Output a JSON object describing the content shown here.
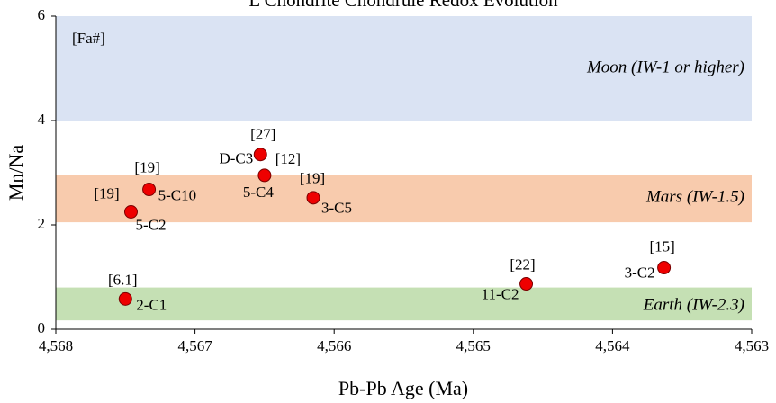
{
  "chart_data": {
    "type": "scatter",
    "title": "L Chondrite Chondrule Redox Evolution",
    "x_label": "Pb-Pb Age (Ma)",
    "y_label": "Mn/Na",
    "legend_note": "[Fa#]",
    "xlim": [
      4568,
      4563
    ],
    "xticks": [
      {
        "value": 4568,
        "label": "4,568"
      },
      {
        "value": 4567,
        "label": "4,567"
      },
      {
        "value": 4566,
        "label": "4,566"
      },
      {
        "value": 4565,
        "label": "4,565"
      },
      {
        "value": 4564,
        "label": "4,564"
      },
      {
        "value": 4563,
        "label": "4,563"
      }
    ],
    "ylim": [
      0,
      6
    ],
    "yticks": [
      0,
      2,
      4,
      6
    ],
    "bands": [
      {
        "name": "Moon (IW-1 or higher)",
        "color": "#dae3f3",
        "range": [
          4,
          6
        ]
      },
      {
        "name": "Mars (IW-1.5)",
        "color": "#f8cbad",
        "range": [
          2.05,
          2.95
        ]
      },
      {
        "name": "Earth (IW-2.3)",
        "color": "#c5e0b4",
        "range": [
          0.17,
          0.8
        ]
      }
    ],
    "series": [
      {
        "color": "#ee0000",
        "x": [
          4567.5,
          4567.46,
          4567.33,
          4566.53,
          4566.5,
          4566.15,
          4564.62,
          4563.63
        ],
        "values": [
          0.58,
          2.25,
          2.68,
          3.35,
          2.95,
          2.52,
          0.87,
          1.18
        ],
        "point_labels": [
          "2-C1",
          "5-C2",
          "5-C10",
          "D-C3",
          "5-C4",
          "3-C5",
          "11-C2",
          "3-C2"
        ],
        "fa_labels": [
          "[6.1]",
          "[19]",
          "[19]",
          "[27]",
          "[12]",
          "[19]",
          "[22]",
          "[15]"
        ]
      }
    ]
  }
}
